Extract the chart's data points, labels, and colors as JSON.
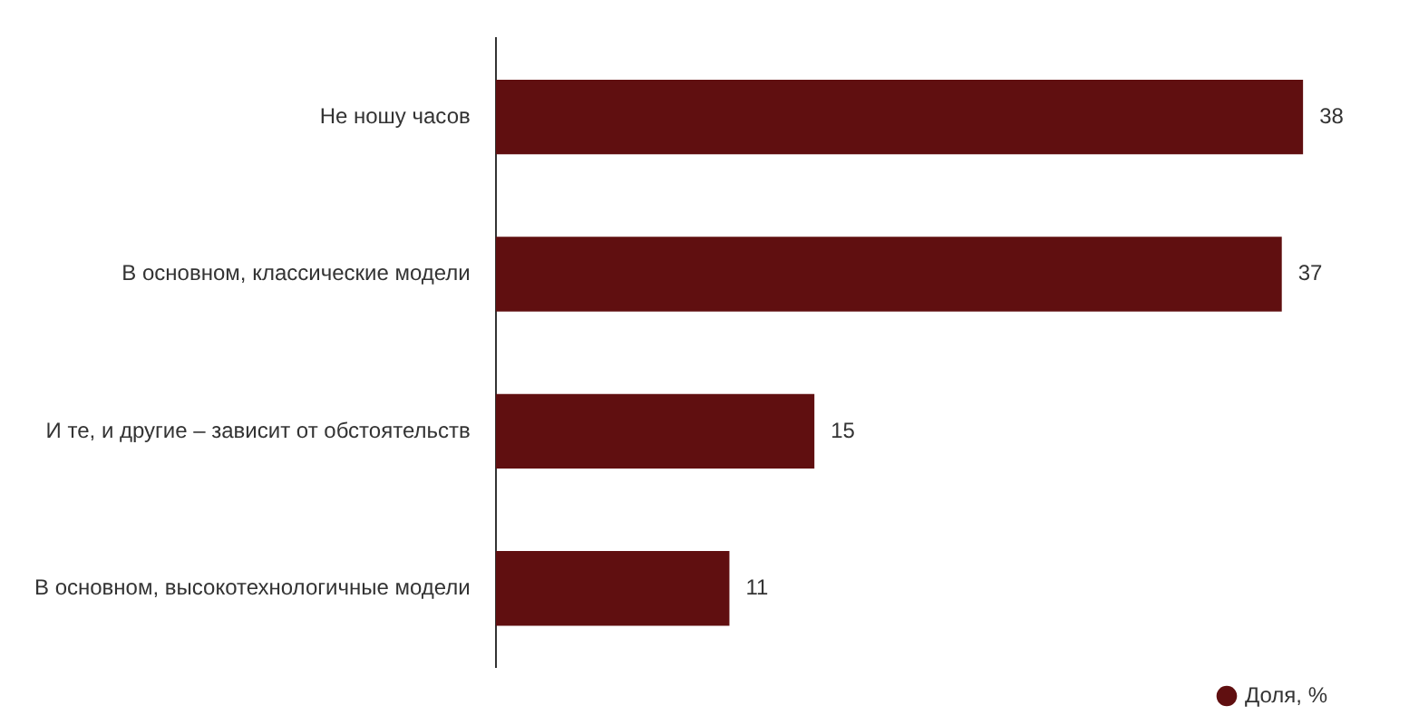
{
  "chart_data": {
    "type": "bar",
    "orientation": "horizontal",
    "categories": [
      "Не ношу часов",
      "В основном, классические модели",
      "И те, и другие – зависит от обстоятельств",
      "В основном, высокотехнологичные модели"
    ],
    "series": [
      {
        "name": "Доля, %",
        "color": "#600f10",
        "values": [
          38,
          37,
          15,
          11
        ]
      }
    ],
    "tick_labels": "y",
    "data_labels": true,
    "grid": false,
    "legend": "bottom right"
  }
}
